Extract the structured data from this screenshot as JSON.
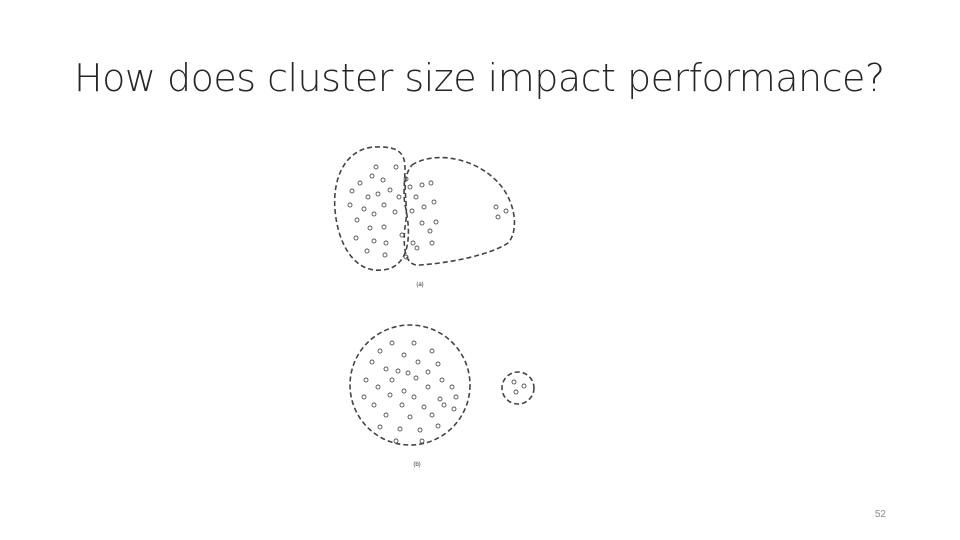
{
  "slide": {
    "title": "How does cluster size impact performance?",
    "page_number": "52"
  },
  "figure": {
    "panel_a_label": "(a)",
    "panel_b_label": "(b)",
    "colors": {
      "stroke": "#444444",
      "point": "#555555",
      "background": "#ffffff"
    }
  }
}
